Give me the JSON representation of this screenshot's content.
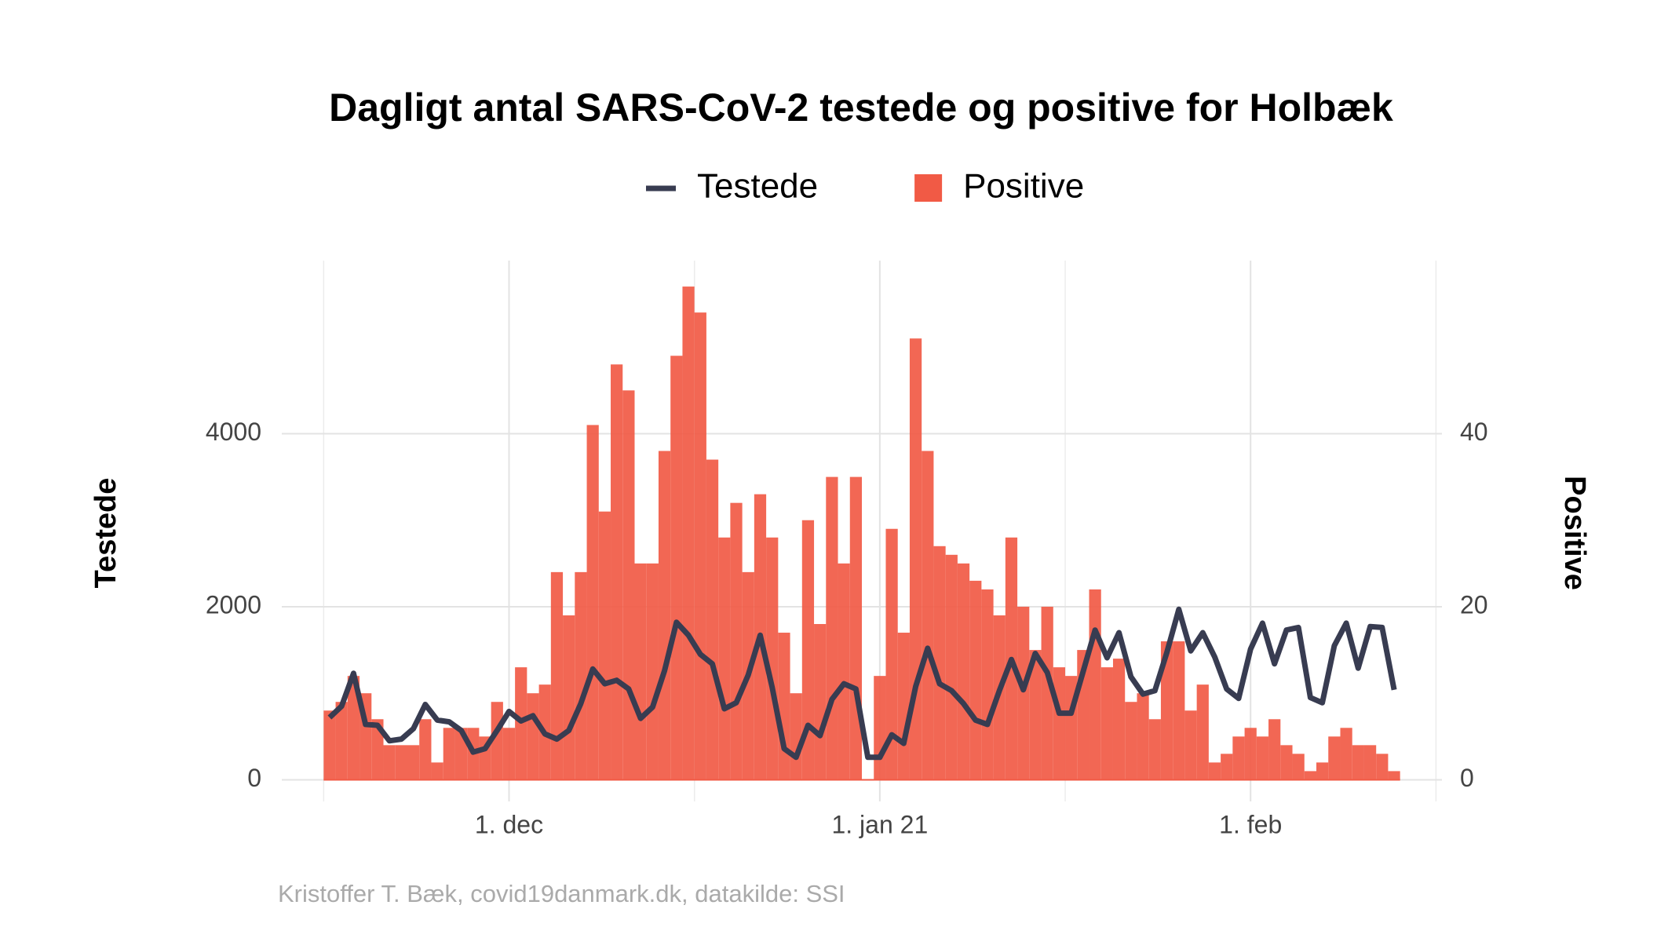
{
  "chart_data": {
    "type": "combo",
    "title": "Dagligt antal SARS-CoV-2 testede og positive for Holbæk",
    "caption": "Kristoffer T. Bæk, covid19danmark.dk, datakilde: SSI",
    "ylabel": "Testede",
    "y2label": "Positive",
    "x": [
      "2020-11-16",
      "2020-11-17",
      "2020-11-18",
      "2020-11-19",
      "2020-11-20",
      "2020-11-21",
      "2020-11-22",
      "2020-11-23",
      "2020-11-24",
      "2020-11-25",
      "2020-11-26",
      "2020-11-27",
      "2020-11-28",
      "2020-11-29",
      "2020-11-30",
      "2020-12-01",
      "2020-12-02",
      "2020-12-03",
      "2020-12-04",
      "2020-12-05",
      "2020-12-06",
      "2020-12-07",
      "2020-12-08",
      "2020-12-09",
      "2020-12-10",
      "2020-12-11",
      "2020-12-12",
      "2020-12-13",
      "2020-12-14",
      "2020-12-15",
      "2020-12-16",
      "2020-12-17",
      "2020-12-18",
      "2020-12-19",
      "2020-12-20",
      "2020-12-21",
      "2020-12-22",
      "2020-12-23",
      "2020-12-24",
      "2020-12-25",
      "2020-12-26",
      "2020-12-27",
      "2020-12-28",
      "2020-12-29",
      "2020-12-30",
      "2020-12-31",
      "2021-01-01",
      "2021-01-02",
      "2021-01-03",
      "2021-01-04",
      "2021-01-05",
      "2021-01-06",
      "2021-01-07",
      "2021-01-08",
      "2021-01-09",
      "2021-01-10",
      "2021-01-11",
      "2021-01-12",
      "2021-01-13",
      "2021-01-14",
      "2021-01-15",
      "2021-01-16",
      "2021-01-17",
      "2021-01-18",
      "2021-01-19",
      "2021-01-20",
      "2021-01-21",
      "2021-01-22",
      "2021-01-23",
      "2021-01-24",
      "2021-01-25",
      "2021-01-26",
      "2021-01-27",
      "2021-01-28",
      "2021-01-29",
      "2021-01-30",
      "2021-01-31",
      "2021-02-01",
      "2021-02-02",
      "2021-02-03",
      "2021-02-04",
      "2021-02-05",
      "2021-02-06",
      "2021-02-07",
      "2021-02-08",
      "2021-02-09",
      "2021-02-10",
      "2021-02-11",
      "2021-02-12",
      "2021-02-13"
    ],
    "series": [
      {
        "name": "Testede",
        "type": "line",
        "color": "#383c51",
        "values": [
          720,
          850,
          1230,
          640,
          630,
          450,
          470,
          590,
          870,
          690,
          670,
          570,
          320,
          360,
          570,
          790,
          680,
          740,
          530,
          470,
          570,
          880,
          1280,
          1110,
          1150,
          1050,
          710,
          840,
          1260,
          1820,
          1670,
          1450,
          1340,
          820,
          890,
          1210,
          1670,
          1070,
          360,
          260,
          630,
          510,
          930,
          1110,
          1050,
          260,
          260,
          520,
          420,
          1080,
          1520,
          1110,
          1030,
          880,
          690,
          640,
          1030,
          1390,
          1040,
          1460,
          1240,
          770,
          770,
          1250,
          1730,
          1410,
          1700,
          1190,
          990,
          1030,
          1470,
          1970,
          1490,
          1700,
          1420,
          1050,
          940,
          1510,
          1810,
          1340,
          1730,
          1760,
          950,
          890,
          1550,
          1810,
          1290,
          1770,
          1760,
          1040
        ]
      },
      {
        "name": "Positive",
        "type": "bar",
        "axis": "y2",
        "color": "#f15a45",
        "values": [
          8,
          9,
          12,
          10,
          7,
          4,
          4,
          4,
          7,
          2,
          6,
          6,
          6,
          5,
          9,
          6,
          13,
          10,
          11,
          24,
          19,
          24,
          41,
          31,
          48,
          45,
          25,
          25,
          38,
          49,
          57,
          54,
          37,
          28,
          32,
          24,
          33,
          28,
          17,
          10,
          30,
          18,
          35,
          25,
          35,
          0,
          12,
          29,
          17,
          51,
          38,
          27,
          26,
          25,
          23,
          22,
          19,
          28,
          20,
          15,
          20,
          13,
          12,
          15,
          22,
          13,
          14,
          9,
          10,
          7,
          16,
          16,
          8,
          11,
          2,
          3,
          5,
          6,
          5,
          7,
          4,
          3,
          1,
          2,
          5,
          6,
          4,
          4,
          3,
          1
        ]
      }
    ],
    "xlim": [
      "2020-11-12",
      "2021-02-17"
    ],
    "xticks": [
      {
        "value": "2020-12-01",
        "label": "1. dec"
      },
      {
        "value": "2021-01-01",
        "label": "1. jan 21"
      },
      {
        "value": "2021-02-01",
        "label": "1. feb"
      }
    ],
    "ylim": [
      -250,
      6000
    ],
    "yticks": [
      0,
      2000,
      4000
    ],
    "y2lim": [
      -2.5,
      60
    ],
    "y2ticks": [
      0,
      20,
      40
    ],
    "grid": true,
    "legend": "top"
  }
}
